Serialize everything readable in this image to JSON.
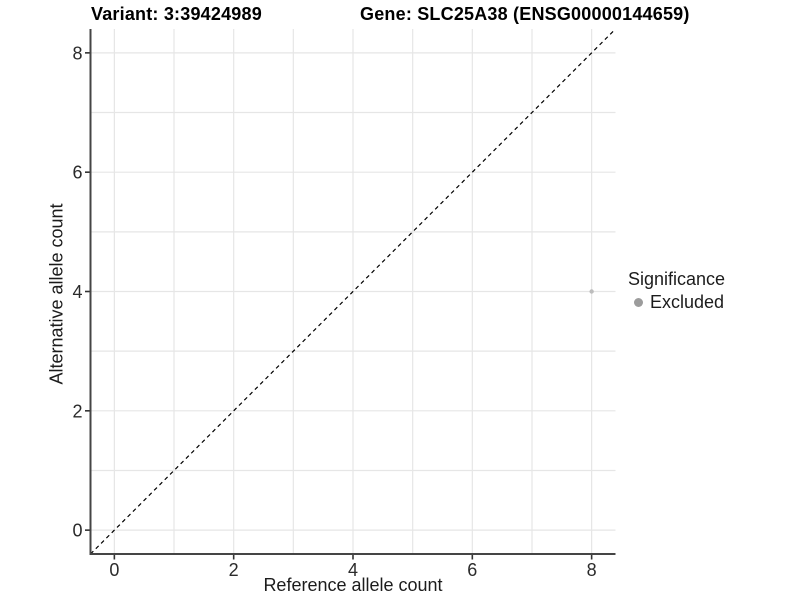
{
  "chart_data": {
    "type": "scatter",
    "title_left": "Variant: 3:39424989",
    "title_right": "Gene: SLC25A38 (ENSG00000144659)",
    "xlabel": "Reference allele count",
    "ylabel": "Alternative allele count",
    "xlim": [
      -0.4,
      8.4
    ],
    "ylim": [
      -0.4,
      8.4
    ],
    "x_ticks": [
      0,
      2,
      4,
      6,
      8
    ],
    "y_ticks": [
      0,
      2,
      4,
      6,
      8
    ],
    "grid_step": 1,
    "grid": true,
    "equal_aspect": true,
    "points": [
      {
        "x": 8,
        "y": 4,
        "series": "Excluded",
        "color": "#bdbdbd",
        "radius": 2.2
      }
    ],
    "identity_line": {
      "style": "dashed",
      "color": "#000000",
      "from": -0.4,
      "to": 8.4
    },
    "legend": {
      "title": "Significance",
      "position": "right",
      "entries": [
        {
          "label": "Excluded",
          "color": "#9c9c9c"
        }
      ]
    },
    "colors": {
      "grid": "#e6e6e6",
      "axis_line": "#454545",
      "tick_mark": "#333333",
      "tick_text": "#2b2b2b"
    }
  }
}
